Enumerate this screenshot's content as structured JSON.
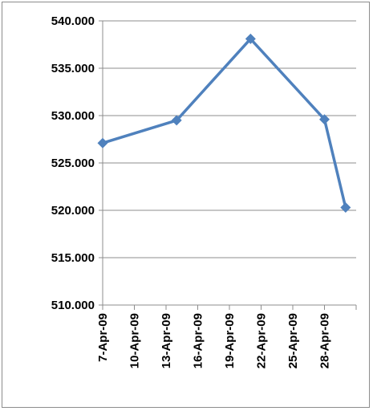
{
  "chart_data": {
    "type": "line",
    "title": "",
    "xlabel": "",
    "ylabel": "",
    "x_axis": {
      "type": "date",
      "ticks": [
        "7-Apr-09",
        "10-Apr-09",
        "13-Apr-09",
        "16-Apr-09",
        "19-Apr-09",
        "22-Apr-09",
        "25-Apr-09",
        "28-Apr-09"
      ],
      "range": [
        "2009-04-07",
        "2009-05-01"
      ]
    },
    "y_axis": {
      "range": [
        510,
        540
      ],
      "step": 5,
      "tick_labels": [
        "510.000",
        "515.000",
        "520.000",
        "525.000",
        "530.000",
        "535.000",
        "540.000"
      ],
      "gridlines": true
    },
    "series": [
      {
        "color": "#4f81bd",
        "marker": "diamond",
        "points": [
          {
            "x": "2009-04-07",
            "y": 527.1
          },
          {
            "x": "2009-04-14",
            "y": 529.5
          },
          {
            "x": "2009-04-21",
            "y": 538.1
          },
          {
            "x": "2009-04-28",
            "y": 529.6
          },
          {
            "x": "2009-04-30",
            "y": 520.3
          }
        ]
      }
    ],
    "legend": "none"
  }
}
